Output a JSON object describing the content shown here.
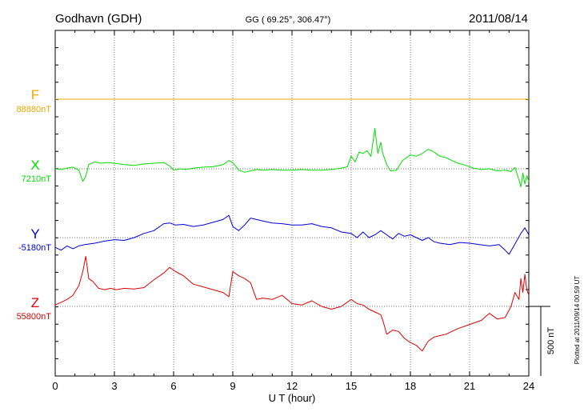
{
  "header": {
    "station": "Godhavn (GDH)",
    "coords": "GG ( 69.25°, 306.47°)",
    "date": "2011/08/14"
  },
  "footer": {
    "plotted": "Plotted at 2011/09/14 00:59 UT"
  },
  "chart_data": {
    "type": "line",
    "xlabel": "U T (hour)",
    "xlim": [
      0,
      24
    ],
    "x_ticks": [
      0,
      3,
      6,
      9,
      12,
      15,
      18,
      21,
      24
    ],
    "grid": true,
    "scale_bar": {
      "label": "500 nT",
      "nT": 500
    },
    "series": [
      {
        "name": "F",
        "baseline_label": "88880nT",
        "baseline": 88880,
        "color": "#f0a800",
        "x": [
          0,
          24
        ],
        "y": [
          88880,
          88880
        ]
      },
      {
        "name": "X",
        "baseline_label": "7210nT",
        "baseline": 7210,
        "color": "#00e000",
        "x": [
          0,
          0.3,
          0.6,
          0.9,
          1.2,
          1.4,
          1.55,
          1.7,
          2.0,
          2.3,
          2.6,
          3.0,
          3.5,
          4.0,
          4.5,
          5.0,
          5.5,
          5.8,
          6.0,
          6.3,
          6.6,
          7.0,
          7.5,
          8.0,
          8.5,
          8.8,
          9.0,
          9.3,
          9.6,
          9.9,
          10.2,
          10.5,
          11.0,
          11.5,
          12.0,
          12.5,
          13.0,
          13.5,
          14.0,
          14.5,
          14.8,
          15.0,
          15.2,
          15.4,
          15.6,
          15.8,
          16.0,
          16.2,
          16.35,
          16.5,
          16.6,
          16.8,
          17.0,
          17.3,
          17.6,
          18.0,
          18.3,
          18.6,
          18.9,
          19.2,
          19.5,
          19.8,
          20.1,
          20.4,
          20.8,
          21.2,
          21.6,
          22.0,
          22.4,
          22.8,
          23.1,
          23.3,
          23.5,
          23.6,
          23.7,
          23.8,
          23.9,
          24.0
        ],
        "y": [
          7210,
          7205,
          7215,
          7222,
          7200,
          7120,
          7155,
          7240,
          7260,
          7250,
          7255,
          7250,
          7240,
          7235,
          7245,
          7250,
          7255,
          7230,
          7200,
          7210,
          7205,
          7215,
          7222,
          7225,
          7240,
          7270,
          7255,
          7200,
          7185,
          7195,
          7205,
          7200,
          7205,
          7200,
          7200,
          7205,
          7200,
          7200,
          7205,
          7215,
          7225,
          7300,
          7260,
          7330,
          7320,
          7340,
          7300,
          7500,
          7320,
          7400,
          7320,
          7240,
          7195,
          7200,
          7270,
          7310,
          7300,
          7320,
          7350,
          7330,
          7300,
          7290,
          7270,
          7250,
          7235,
          7215,
          7205,
          7210,
          7195,
          7200,
          7190,
          7220,
          7130,
          7080,
          7180,
          7100,
          7160,
          7120
        ]
      },
      {
        "name": "Y",
        "baseline_label": "-5180nT",
        "baseline": -5180,
        "color": "#0000dd",
        "x": [
          0,
          0.3,
          0.6,
          0.9,
          1.2,
          1.5,
          2.0,
          2.5,
          3.0,
          3.5,
          4.0,
          4.5,
          5.0,
          5.5,
          5.8,
          6.1,
          6.5,
          7.0,
          7.5,
          8.0,
          8.5,
          8.8,
          9.0,
          9.3,
          9.6,
          9.9,
          10.2,
          10.5,
          11.0,
          11.5,
          12.0,
          12.5,
          13.0,
          13.5,
          14.0,
          14.5,
          15.0,
          15.3,
          15.6,
          15.9,
          16.2,
          16.5,
          16.8,
          17.1,
          17.4,
          17.7,
          18.0,
          18.3,
          18.6,
          18.9,
          19.2,
          19.5,
          20.0,
          20.5,
          21.0,
          21.5,
          22.0,
          22.5,
          22.8,
          23.0,
          23.2,
          23.4,
          23.6,
          23.8,
          24.0
        ],
        "y": [
          -5250,
          -5270,
          -5240,
          -5260,
          -5240,
          -5230,
          -5220,
          -5205,
          -5195,
          -5200,
          -5180,
          -5150,
          -5130,
          -5080,
          -5075,
          -5090,
          -5085,
          -5100,
          -5090,
          -5070,
          -5050,
          -5020,
          -5100,
          -5130,
          -5090,
          -5040,
          -5050,
          -5060,
          -5075,
          -5080,
          -5090,
          -5090,
          -5080,
          -5100,
          -5110,
          -5140,
          -5150,
          -5180,
          -5140,
          -5180,
          -5160,
          -5130,
          -5160,
          -5190,
          -5150,
          -5170,
          -5160,
          -5180,
          -5200,
          -5180,
          -5210,
          -5220,
          -5230,
          -5215,
          -5220,
          -5230,
          -5240,
          -5230,
          -5270,
          -5300,
          -5250,
          -5200,
          -5150,
          -5110,
          -5160
        ]
      },
      {
        "name": "Z",
        "baseline_label": "55800nT",
        "baseline": 55800,
        "color": "#e00000",
        "x": [
          0,
          0.3,
          0.6,
          0.9,
          1.2,
          1.4,
          1.55,
          1.7,
          1.9,
          2.2,
          2.5,
          2.8,
          3.1,
          3.5,
          4.0,
          4.5,
          5.0,
          5.5,
          5.8,
          6.1,
          6.5,
          7.0,
          7.5,
          8.0,
          8.5,
          8.8,
          9.0,
          9.3,
          9.6,
          9.9,
          10.2,
          10.5,
          11.0,
          11.5,
          12.0,
          12.5,
          13.0,
          13.5,
          14.0,
          14.5,
          15.0,
          15.3,
          15.6,
          15.9,
          16.2,
          16.5,
          16.6,
          16.8,
          17.1,
          17.4,
          17.7,
          18.0,
          18.3,
          18.6,
          18.9,
          19.2,
          19.5,
          19.8,
          20.1,
          20.4,
          20.8,
          21.2,
          21.6,
          22.0,
          22.4,
          22.8,
          23.1,
          23.3,
          23.5,
          23.6,
          23.7,
          23.8,
          23.9,
          24.0
        ],
        "y": [
          55810,
          55830,
          55850,
          55880,
          55950,
          56050,
          56160,
          56000,
          55980,
          55930,
          55920,
          55930,
          55920,
          55930,
          55925,
          55935,
          55990,
          56040,
          56080,
          56050,
          56020,
          55960,
          55940,
          55920,
          55900,
          55870,
          56050,
          56020,
          56000,
          55970,
          55850,
          55860,
          55850,
          55880,
          55820,
          55810,
          55840,
          55800,
          55780,
          55800,
          55850,
          55820,
          55810,
          55780,
          55760,
          55740,
          55700,
          55600,
          55630,
          55620,
          55570,
          55540,
          55520,
          55480,
          55550,
          55580,
          55590,
          55600,
          55620,
          55640,
          55660,
          55680,
          55700,
          55750,
          55710,
          55720,
          55800,
          55900,
          55850,
          56000,
          55900,
          56030,
          55920,
          55880
        ]
      }
    ]
  }
}
